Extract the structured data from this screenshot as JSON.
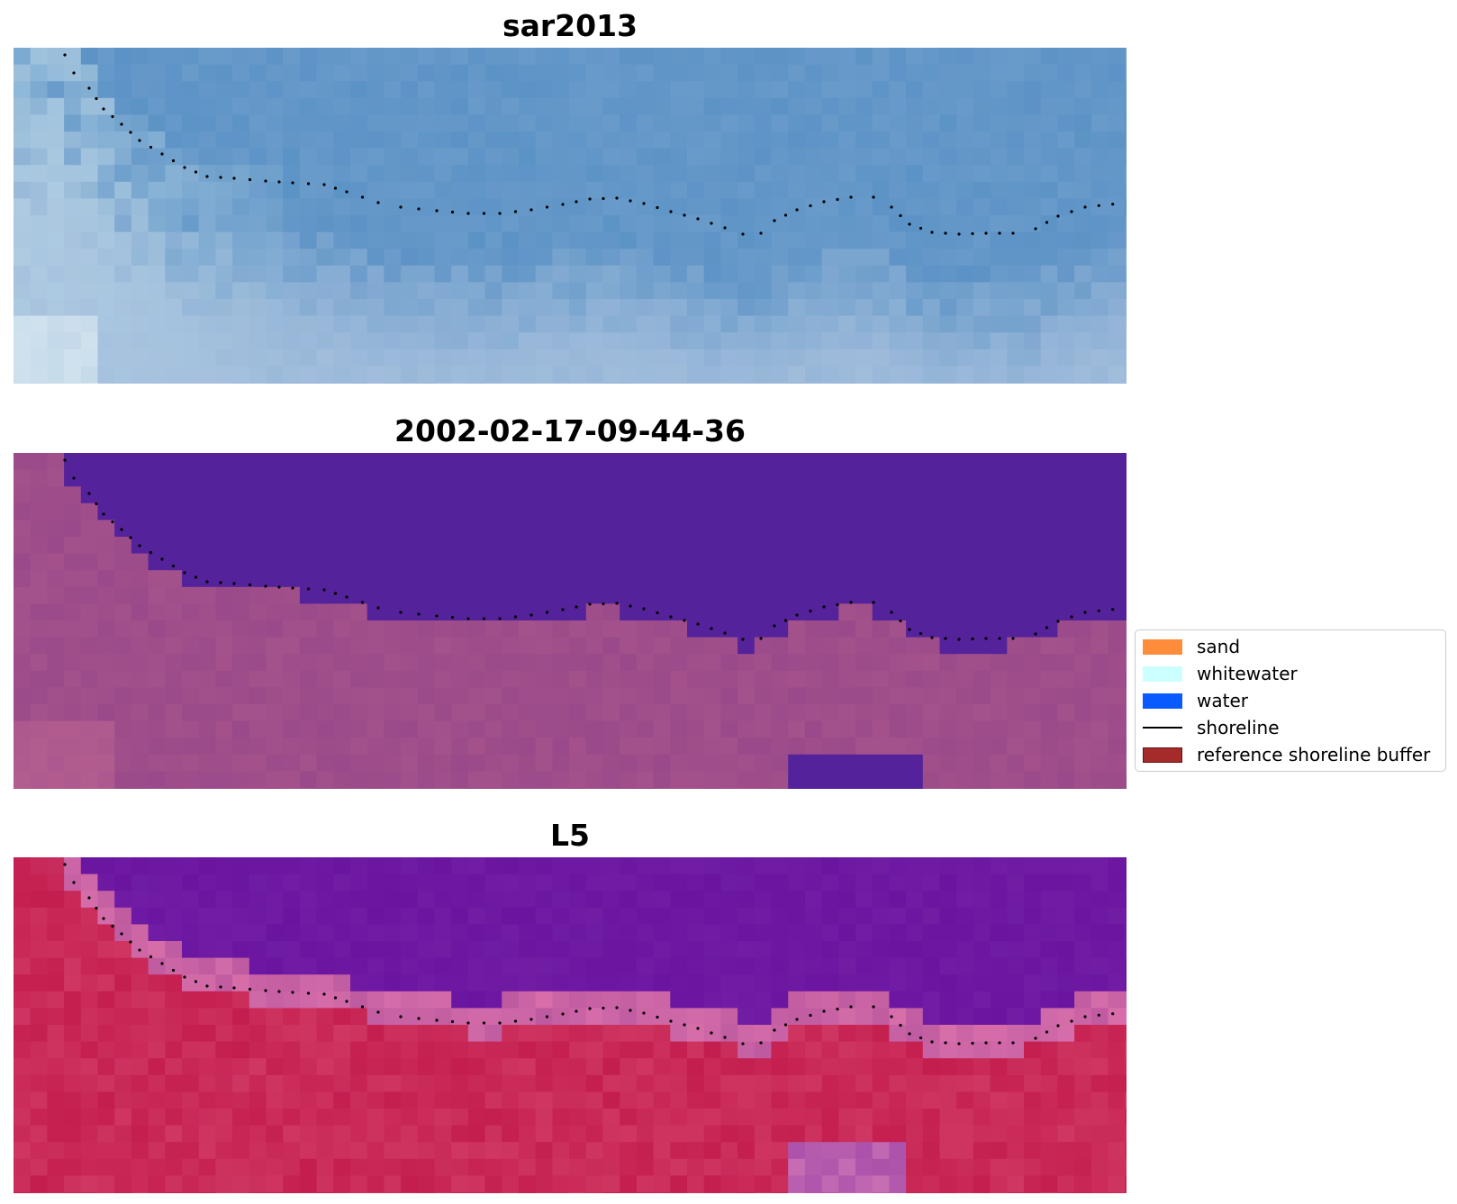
{
  "panels": [
    {
      "title": "sar2013",
      "image": "rgb-composite"
    },
    {
      "title": "2002-02-17-09-44-36",
      "image": "classified-overlay"
    },
    {
      "title": "L5",
      "image": "index-map"
    }
  ],
  "legend": {
    "items": [
      {
        "label": "sand",
        "color": "#ff8c3a",
        "kind": "patch"
      },
      {
        "label": "whitewater",
        "color": "#ccffff",
        "kind": "patch"
      },
      {
        "label": "water",
        "color": "#0a5bff",
        "kind": "patch"
      },
      {
        "label": "shoreline",
        "color": "#000000",
        "kind": "line"
      },
      {
        "label": "reference shoreline buffer",
        "color": "#a52a2a",
        "kind": "patch"
      }
    ]
  },
  "colors": {
    "water_class": "#54229a",
    "land_class": "#9a4a8a",
    "index_water": "#6a14a0",
    "index_land": "#c41e4e",
    "sky_blue": "#5b93c8"
  }
}
